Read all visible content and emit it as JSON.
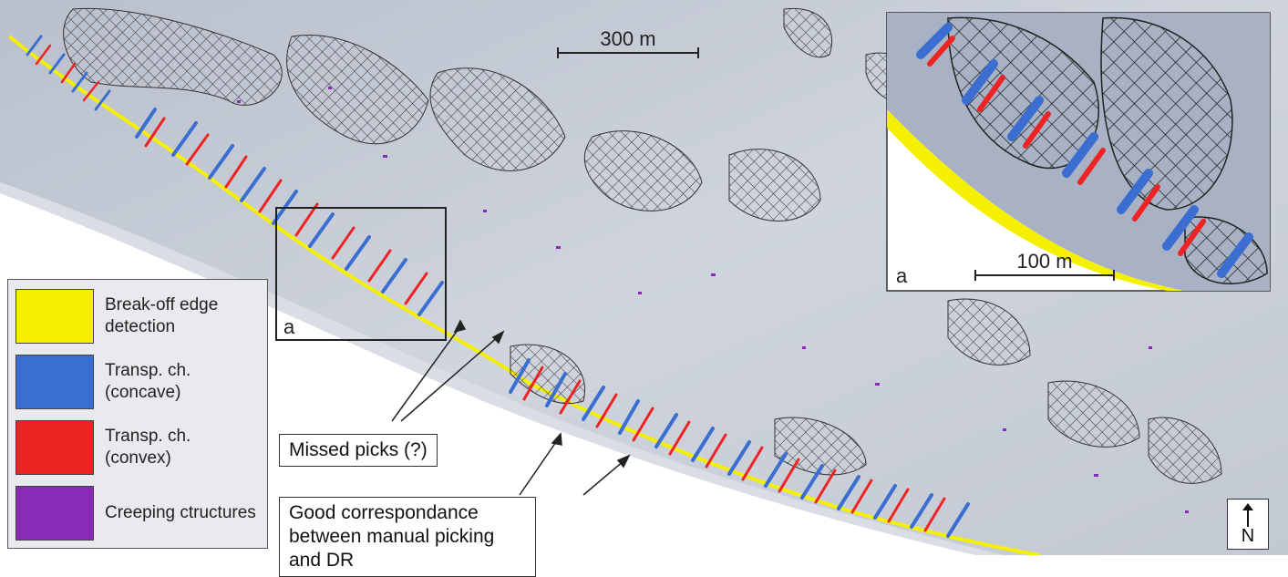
{
  "scale_bars": {
    "main": "300 m",
    "inset": "100 m"
  },
  "inset": {
    "label": "a"
  },
  "overview_box": {
    "label": "a"
  },
  "legend": {
    "items": [
      {
        "label": "Break-off edge detection",
        "color": "#f4f000"
      },
      {
        "label": "Transp. ch. (concave)",
        "color": "#3a6fd1"
      },
      {
        "label": "Transp. ch. (convex)",
        "color": "#ee2424"
      },
      {
        "label": "Creeping ctructures",
        "color": "#8a2bb8"
      }
    ]
  },
  "callouts": {
    "missed_picks": "Missed picks (?)",
    "good_correspondence": "Good correspondance between manual picking and DR"
  },
  "north_arrow": {
    "letter": "N"
  },
  "colors": {
    "terrain": "#c9ced8",
    "terrain_dark": "#a9b2c2",
    "hatch": "#333333",
    "background": "#ffffff"
  }
}
